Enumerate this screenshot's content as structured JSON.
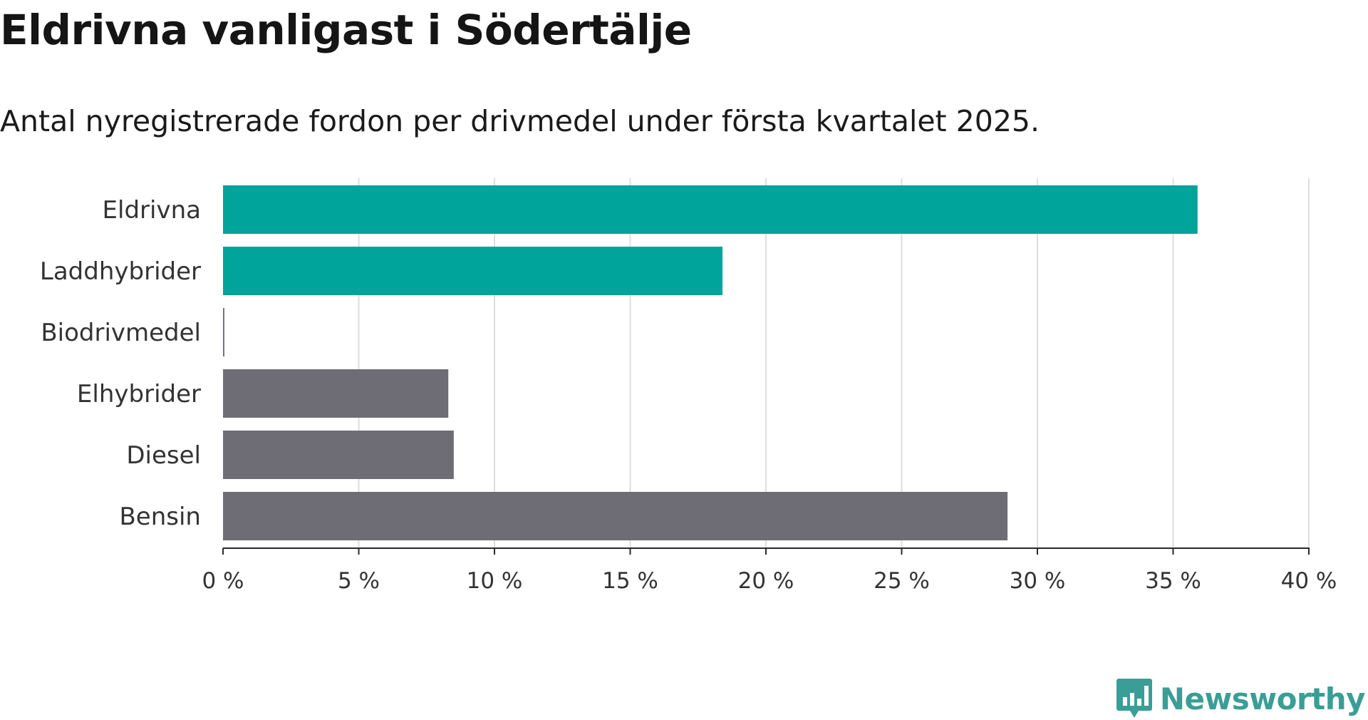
{
  "chart_data": {
    "type": "bar",
    "orientation": "horizontal",
    "title": "Eldrivna vanligast i Södertälje",
    "subtitle": "Antal nyregistrerade fordon per drivmedel under första kvartalet 2025.",
    "categories": [
      "Eldrivna",
      "Laddhybrider",
      "Biodrivmedel",
      "Elhybrider",
      "Diesel",
      "Bensin"
    ],
    "values": [
      35.9,
      18.4,
      0.05,
      8.3,
      8.5,
      28.9
    ],
    "bar_colors": [
      "#00a49a",
      "#00a49a",
      "#6e6d76",
      "#6e6d76",
      "#6e6d76",
      "#6e6d76"
    ],
    "xlim": [
      0,
      40
    ],
    "x_ticks": [
      0,
      5,
      10,
      15,
      20,
      25,
      30,
      35,
      40
    ],
    "x_tick_labels": [
      "0 %",
      "5 %",
      "10 %",
      "15 %",
      "20 %",
      "25 %",
      "30 %",
      "35 %",
      "40 %"
    ],
    "x_unit": "%",
    "grid": true,
    "grid_color": "#dddddd",
    "axis_color": "#2a2a2a"
  },
  "branding": {
    "logo_text": "Newsworthy",
    "logo_color": "#3a9e96",
    "logo_icon": "bar-chart-bubble-icon"
  }
}
